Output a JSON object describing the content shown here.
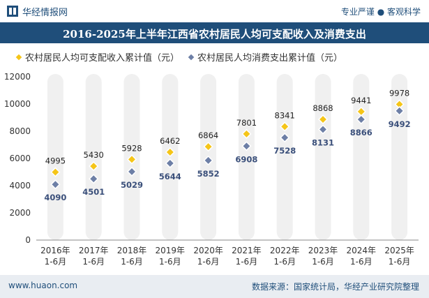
{
  "header": {
    "brand": "华经情报网",
    "slogan": "专业严谨 ● 客观科学"
  },
  "chart_data": {
    "type": "scatter",
    "title": "2016-2025年上半年江西省农村居民人均可支配收入及消费支出",
    "categories": [
      "2016年\n1-6月",
      "2017年\n1-6月",
      "2018年\n1-6月",
      "2019年\n1-6月",
      "2020年\n1-6月",
      "2021年\n1-6月",
      "2022年\n1-6月",
      "2023年\n1-6月",
      "2024年\n1-6月",
      "2025年\n1-6月"
    ],
    "series": [
      {
        "name": "农村居民人均可支配收入累计值（元）",
        "values": [
          4995,
          5430,
          5928,
          6462,
          6864,
          7801,
          8341,
          8868,
          9441,
          9978
        ],
        "color": "#f5c518",
        "marker": "diamond"
      },
      {
        "name": "农村居民人均消费支出累计值（元）",
        "values": [
          4090,
          4501,
          5029,
          5644,
          5852,
          6908,
          7528,
          8131,
          8866,
          9492
        ],
        "color": "#6d7fa6",
        "marker": "diamond"
      }
    ],
    "ylim": [
      0,
      12000
    ],
    "yticks": [
      0,
      2000,
      4000,
      6000,
      8000,
      10000,
      12000
    ],
    "legend_position": "top-left",
    "column_band_color": "#f0f0f0"
  },
  "footer": {
    "site": "www.huaon.com",
    "source": "数据来源：国家统计局，华经产业研究院整理"
  }
}
